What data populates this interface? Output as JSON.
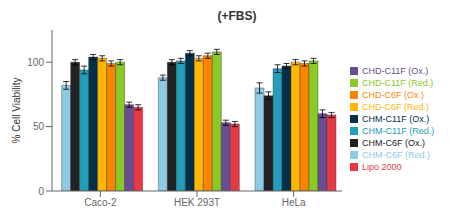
{
  "chart_data": {
    "type": "bar",
    "title": "(+FBS)",
    "ylabel": "% Cell Viability",
    "categories": [
      "Caco-2",
      "HEK 293T",
      "HeLa"
    ],
    "series": [
      {
        "name": "CHM-C6F (Red.)",
        "color": "#8ecae6",
        "values": [
          82,
          88,
          80
        ],
        "errors": [
          3,
          2,
          4
        ]
      },
      {
        "name": "CHM-C6F (Ox.)",
        "color": "#222222",
        "values": [
          100,
          100,
          74
        ],
        "errors": [
          2,
          2,
          3
        ]
      },
      {
        "name": "CHM-C11F (Red.)",
        "color": "#219ebc",
        "values": [
          94,
          101,
          95
        ],
        "errors": [
          3,
          2,
          3
        ]
      },
      {
        "name": "CHM-C11F (Ox.)",
        "color": "#023047",
        "values": [
          104,
          107,
          97
        ],
        "errors": [
          2,
          2,
          2
        ]
      },
      {
        "name": "CHD-C6F (Red.)",
        "color": "#ffb703",
        "values": [
          103,
          103,
          100
        ],
        "errors": [
          2,
          2,
          2
        ]
      },
      {
        "name": "CHD-C6F (Ox.)",
        "color": "#fb8500",
        "values": [
          99,
          105,
          99
        ],
        "errors": [
          2,
          2,
          2
        ]
      },
      {
        "name": "CHD-C11F (Red.)",
        "color": "#8ac926",
        "values": [
          100,
          108,
          101
        ],
        "errors": [
          2,
          2,
          2
        ]
      },
      {
        "name": "CHD-C11F (Ox.)",
        "color": "#6a4c93",
        "values": [
          67,
          53,
          60
        ],
        "errors": [
          2,
          2,
          3
        ]
      },
      {
        "name": "Lipo 2000",
        "color": "#e63946",
        "values": [
          65,
          52,
          59
        ],
        "errors": [
          2,
          2,
          2
        ]
      }
    ],
    "ylim": [
      0,
      125
    ],
    "yticks": [
      0,
      50,
      100
    ],
    "grid": false,
    "legend": "right"
  }
}
